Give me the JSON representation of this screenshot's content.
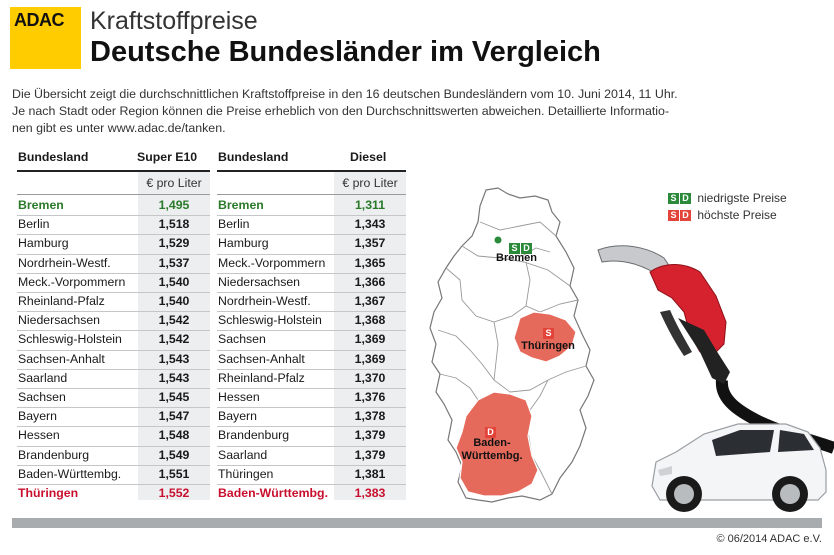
{
  "brand": {
    "logo_text": "ADAC"
  },
  "header": {
    "kicker": "Kraftstoffpreise",
    "title": "Deutsche Bundesländer im Vergleich"
  },
  "intro": {
    "line1": "Die Übersicht zeigt die durchschnittlichen Kraftstoffpreise in den 16  deutschen Bundesländern vom  10. Juni 2014, 11 Uhr.",
    "line2": "Je nach Stadt oder Region können die Preise erheblich von den Durchschnittswerten abweichen. Detaillierte Informatio-",
    "line3": "nen gibt es unter www.adac.de/tanken."
  },
  "table_e10": {
    "col_state": "Bundesland",
    "col_value": "Super E10",
    "unit": "€ pro Liter",
    "rows": [
      {
        "state": "Bremen",
        "value": "1,495",
        "highlight": "lowest"
      },
      {
        "state": "Berlin",
        "value": "1,518"
      },
      {
        "state": "Hamburg",
        "value": "1,529"
      },
      {
        "state": "Nordrhein-Westf.",
        "value": "1,537"
      },
      {
        "state": "Meck.-Vorpommern",
        "value": "1,540"
      },
      {
        "state": "Rheinland-Pfalz",
        "value": "1,540"
      },
      {
        "state": "Niedersachsen",
        "value": "1,542"
      },
      {
        "state": "Schleswig-Holstein",
        "value": "1,542"
      },
      {
        "state": "Sachsen-Anhalt",
        "value": "1,543"
      },
      {
        "state": "Saarland",
        "value": "1,543"
      },
      {
        "state": "Sachsen",
        "value": "1,545"
      },
      {
        "state": "Bayern",
        "value": "1,547"
      },
      {
        "state": "Hessen",
        "value": "1,548"
      },
      {
        "state": "Brandenburg",
        "value": "1,549"
      },
      {
        "state": "Baden-Württembg.",
        "value": "1,551"
      },
      {
        "state": "Thüringen",
        "value": "1,552",
        "highlight": "highest"
      }
    ]
  },
  "table_diesel": {
    "col_state": "Bundesland",
    "col_value": "Diesel",
    "unit": "€ pro Liter",
    "rows": [
      {
        "state": "Bremen",
        "value": "1,311",
        "highlight": "lowest"
      },
      {
        "state": "Berlin",
        "value": "1,343"
      },
      {
        "state": "Hamburg",
        "value": "1,357"
      },
      {
        "state": "Meck.-Vorpommern",
        "value": "1,365"
      },
      {
        "state": "Niedersachsen",
        "value": "1,366"
      },
      {
        "state": "Nordrhein-Westf.",
        "value": "1,367"
      },
      {
        "state": "Schleswig-Holstein",
        "value": "1,368"
      },
      {
        "state": "Sachsen",
        "value": "1,369"
      },
      {
        "state": "Sachsen-Anhalt",
        "value": "1,369"
      },
      {
        "state": "Rheinland-Pfalz",
        "value": "1,370"
      },
      {
        "state": "Hessen",
        "value": "1,376"
      },
      {
        "state": "Bayern",
        "value": "1,378"
      },
      {
        "state": "Brandenburg",
        "value": "1,379"
      },
      {
        "state": "Saarland",
        "value": "1,379"
      },
      {
        "state": "Thüringen",
        "value": "1,381"
      },
      {
        "state": "Baden-Württembg.",
        "value": "1,383",
        "highlight": "highest"
      }
    ]
  },
  "legend": {
    "badge_s": "S",
    "badge_d": "D",
    "lowest_label": "niedrigste Preise",
    "highest_label": "höchste Preise"
  },
  "map": {
    "bremen_label": "Bremen",
    "thueringen_label": "Thüringen",
    "bw_label_line1": "Baden-",
    "bw_label_line2": "Württembg.",
    "badge_s": "S",
    "badge_d": "D"
  },
  "colors": {
    "adac_yellow": "#ffcc00",
    "lowest_green": "#2a7a2a",
    "highest_red": "#c8102e",
    "map_highlight": "#e66a5c",
    "value_column_bg": "#eceef0"
  },
  "footer": {
    "copyright": "© 06/2014 ADAC e.V."
  }
}
